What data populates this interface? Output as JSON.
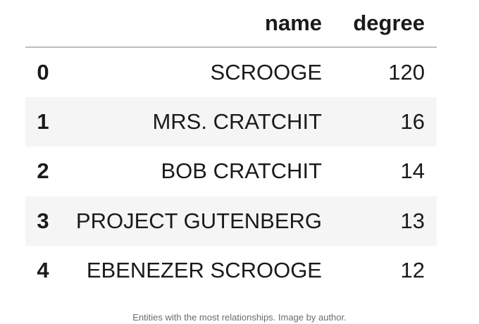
{
  "table": {
    "columns": [
      "",
      "name",
      "degree"
    ],
    "rows": [
      {
        "index": "0",
        "name": "SCROOGE",
        "degree": "120"
      },
      {
        "index": "1",
        "name": "MRS. CRATCHIT",
        "degree": "16"
      },
      {
        "index": "2",
        "name": "BOB CRATCHIT",
        "degree": "14"
      },
      {
        "index": "3",
        "name": "PROJECT GUTENBERG",
        "degree": "13"
      },
      {
        "index": "4",
        "name": "EBENEZER SCROOGE",
        "degree": "12"
      }
    ]
  },
  "caption": "Entities with the most relationships. Image by author.",
  "colors": {
    "alt_row_background": "#f5f5f5",
    "header_rule": "#bdbdbd",
    "text": "#1a1a1a",
    "caption_text": "#6b6b6b"
  }
}
